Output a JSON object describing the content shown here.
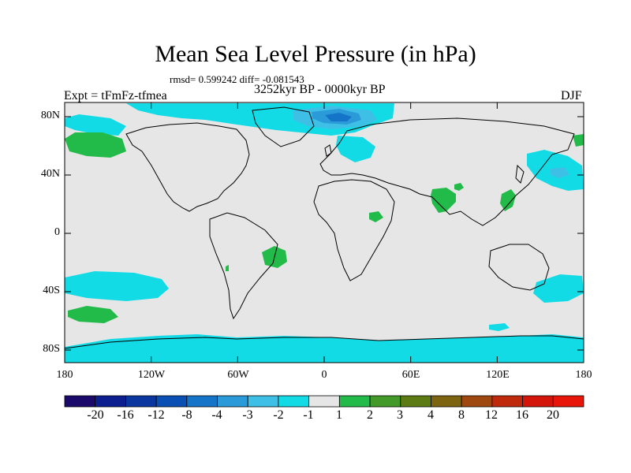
{
  "title": "Mean Sea Level Pressure (in hPa)",
  "stats": "rmsd= 0.599242 diff= -0.081543",
  "experiment": "Expt = tFmFz-tfmea",
  "period": "3252kyr BP - 0000kyr BP",
  "season": "DJF",
  "map": {
    "background": "#e6e6e6",
    "coastline_color": "#000000",
    "lat_labels": [
      "80N",
      "40N",
      "0",
      "40S",
      "80S"
    ],
    "lon_labels": [
      "180",
      "120W",
      "60W",
      "0",
      "60E",
      "120E",
      "180"
    ]
  },
  "colorbar": {
    "labels": [
      "-20",
      "-16",
      "-12",
      "-8",
      "-4",
      "-3",
      "-2",
      "-1",
      "1",
      "2",
      "3",
      "4",
      "8",
      "12",
      "16",
      "20"
    ],
    "colors": [
      "#1c0a6b",
      "#0d1f8f",
      "#0a36a0",
      "#0a4fb4",
      "#1475c8",
      "#2a9ad8",
      "#3ec0e6",
      "#12dbe6",
      "#e6e6e6",
      "#22bb4a",
      "#449a28",
      "#5c7b12",
      "#7d6411",
      "#9e480f",
      "#c02a0c",
      "#d4150a",
      "#e81509"
    ]
  },
  "anomaly_colors": {
    "neg1": "#12dbe6",
    "neg2": "#3ec0e6",
    "neg3": "#2a9ad8",
    "neg4": "#1475c8",
    "pos1": "#22bb4a"
  }
}
